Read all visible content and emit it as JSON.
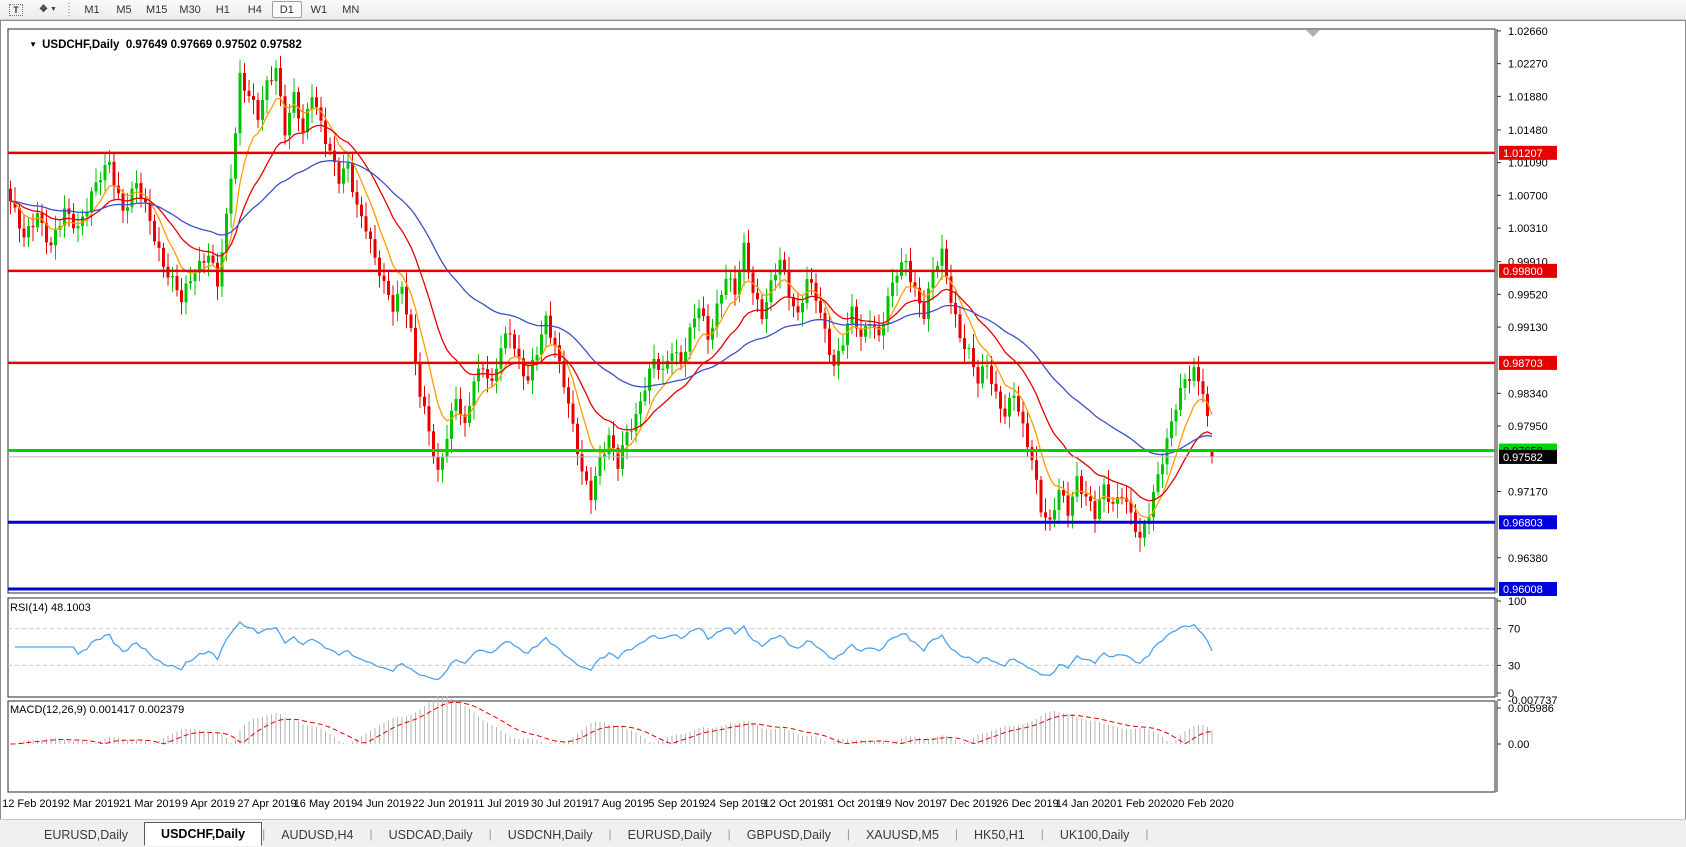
{
  "toolbar": {
    "tools": [
      {
        "name": "text-label-tool",
        "glyph": "T"
      },
      {
        "name": "arrange-windows-tool",
        "glyph": "❖"
      }
    ],
    "timeframes": [
      "M1",
      "M5",
      "M15",
      "M30",
      "H1",
      "H4",
      "D1",
      "W1",
      "MN"
    ],
    "active_timeframe": "D1"
  },
  "chart": {
    "title_symbol": "USDCHF,Daily",
    "quote_open": "0.97649",
    "quote_high": "0.97669",
    "quote_low": "0.97502",
    "quote_close": "0.97582"
  },
  "chart_data": {
    "type": "candlestick",
    "symbol": "USDCHF",
    "timeframe": "Daily",
    "title": "USDCHF,Daily 0.97649 0.97669 0.97502 0.97582",
    "candle_count": 268,
    "x_labels": [
      "12 Feb 2019",
      "2 Mar 2019",
      "21 Mar 2019",
      "9 Apr 2019",
      "27 Apr 2019",
      "16 May 2019",
      "4 Jun 2019",
      "22 Jun 2019",
      "11 Jul 2019",
      "30 Jul 2019",
      "17 Aug 2019",
      "5 Sep 2019",
      "24 Sep 2019",
      "12 Oct 2019",
      "31 Oct 2019",
      "19 Nov 2019",
      "7 Dec 2019",
      "26 Dec 2019",
      "14 Jan 2020",
      "1 Feb 2020",
      "20 Feb 2020"
    ],
    "label_start_index": 5,
    "label_step": 13,
    "price_axis_ticks": [
      "1.02660",
      "1.02270",
      "1.01880",
      "1.01480",
      "1.01090",
      "1.00700",
      "1.00310",
      "0.99910",
      "0.99520",
      "0.99130",
      "0.98340",
      "0.97950",
      "0.97170",
      "0.96380"
    ],
    "price_top": 1.02683,
    "price_bottom": 0.9596,
    "horizontal_lines": [
      {
        "price": 1.01207,
        "label": "1.01207",
        "color": "#e60000",
        "width": 2.5,
        "label_bg": "#e60000",
        "label_fg": "#ffffff"
      },
      {
        "price": 0.998,
        "label": "0.99800",
        "color": "#e60000",
        "width": 2.5,
        "label_bg": "#e60000",
        "label_fg": "#ffffff"
      },
      {
        "price": 0.98703,
        "label": "0.98703",
        "color": "#e60000",
        "width": 2.5,
        "label_bg": "#e60000",
        "label_fg": "#ffffff"
      },
      {
        "price": 0.97658,
        "label": "0.97658",
        "color": "#00d400",
        "width": 3,
        "label_bg": "#00d400",
        "label_fg": "#000000"
      },
      {
        "price": 0.97582,
        "label": "0.97582",
        "color": "#b8b8b8",
        "width": 1,
        "label_bg": "#000000",
        "label_fg": "#ffffff"
      },
      {
        "price": 0.96803,
        "label": "0.96803",
        "color": "#0000dd",
        "width": 3,
        "label_bg": "#0000dd",
        "label_fg": "#ffffff"
      },
      {
        "price": 0.96008,
        "label": "0.96008",
        "color": "#0000dd",
        "width": 3,
        "label_bg": "#0000dd",
        "label_fg": "#ffffff"
      }
    ],
    "close_waypoints": [
      [
        0,
        1.0063
      ],
      [
        3,
        1.0015
      ],
      [
        6,
        1.0052
      ],
      [
        9,
        1.0008
      ],
      [
        12,
        1.0048
      ],
      [
        15,
        1.0035
      ],
      [
        18,
        1.007
      ],
      [
        22,
        1.0108
      ],
      [
        25,
        1.0055
      ],
      [
        28,
        1.008
      ],
      [
        31,
        1.004
      ],
      [
        34,
        0.999
      ],
      [
        38,
        0.9942
      ],
      [
        41,
        0.9985
      ],
      [
        44,
        1.0002
      ],
      [
        46,
        0.996
      ],
      [
        48,
        1.004
      ],
      [
        50,
        1.015
      ],
      [
        51,
        1.0215
      ],
      [
        53,
        1.019
      ],
      [
        55,
        1.016
      ],
      [
        57,
        1.02
      ],
      [
        59,
        1.0226
      ],
      [
        61,
        1.015
      ],
      [
        63,
        1.0185
      ],
      [
        65,
        1.014
      ],
      [
        67,
        1.0195
      ],
      [
        69,
        1.016
      ],
      [
        71,
        1.012
      ],
      [
        73,
        1.0085
      ],
      [
        75,
        1.0105
      ],
      [
        77,
        1.006
      ],
      [
        79,
        1.0035
      ],
      [
        81,
        0.999
      ],
      [
        83,
        0.996
      ],
      [
        85,
        0.994
      ],
      [
        87,
        0.9965
      ],
      [
        89,
        0.9905
      ],
      [
        91,
        0.983
      ],
      [
        93,
        0.979
      ],
      [
        95,
        0.9742
      ],
      [
        97,
        0.9785
      ],
      [
        99,
        0.9825
      ],
      [
        101,
        0.979
      ],
      [
        103,
        0.9855
      ],
      [
        105,
        0.987
      ],
      [
        107,
        0.984
      ],
      [
        109,
        0.9885
      ],
      [
        111,
        0.991
      ],
      [
        113,
        0.9875
      ],
      [
        115,
        0.985
      ],
      [
        117,
        0.988
      ],
      [
        119,
        0.992
      ],
      [
        121,
        0.9895
      ],
      [
        123,
        0.985
      ],
      [
        125,
        0.979
      ],
      [
        127,
        0.9735
      ],
      [
        129,
        0.9715
      ],
      [
        131,
        0.976
      ],
      [
        133,
        0.978
      ],
      [
        135,
        0.9745
      ],
      [
        137,
        0.9785
      ],
      [
        139,
        0.981
      ],
      [
        141,
        0.9845
      ],
      [
        143,
        0.987
      ],
      [
        145,
        0.9855
      ],
      [
        147,
        0.989
      ],
      [
        149,
        0.9875
      ],
      [
        151,
        0.9905
      ],
      [
        153,
        0.9935
      ],
      [
        155,
        0.99
      ],
      [
        157,
        0.994
      ],
      [
        159,
        0.9975
      ],
      [
        161,
        0.995
      ],
      [
        163,
        1.0005
      ],
      [
        165,
        0.996
      ],
      [
        167,
        0.993
      ],
      [
        169,
        0.996
      ],
      [
        171,
        0.999
      ],
      [
        173,
        0.9955
      ],
      [
        175,
        0.993
      ],
      [
        177,
        0.997
      ],
      [
        179,
        0.9945
      ],
      [
        181,
        0.9905
      ],
      [
        183,
        0.987
      ],
      [
        185,
        0.99
      ],
      [
        187,
        0.993
      ],
      [
        189,
        0.9895
      ],
      [
        191,
        0.9925
      ],
      [
        193,
        0.9905
      ],
      [
        195,
        0.9945
      ],
      [
        197,
        0.9975
      ],
      [
        199,
        0.999
      ],
      [
        201,
        0.996
      ],
      [
        203,
        0.993
      ],
      [
        205,
        0.9975
      ],
      [
        207,
        0.9998
      ],
      [
        209,
        0.995
      ],
      [
        211,
        0.9905
      ],
      [
        213,
        0.988
      ],
      [
        215,
        0.9845
      ],
      [
        217,
        0.987
      ],
      [
        219,
        0.9835
      ],
      [
        221,
        0.981
      ],
      [
        223,
        0.983
      ],
      [
        225,
        0.979
      ],
      [
        227,
        0.976
      ],
      [
        229,
        0.97
      ],
      [
        231,
        0.9675
      ],
      [
        233,
        0.9715
      ],
      [
        235,
        0.9695
      ],
      [
        237,
        0.9735
      ],
      [
        239,
        0.971
      ],
      [
        241,
        0.9685
      ],
      [
        243,
        0.972
      ],
      [
        245,
        0.9705
      ],
      [
        247,
        0.9718
      ],
      [
        249,
        0.9685
      ],
      [
        251,
        0.9655
      ],
      [
        253,
        0.9695
      ],
      [
        255,
        0.974
      ],
      [
        257,
        0.9775
      ],
      [
        259,
        0.9815
      ],
      [
        261,
        0.985
      ],
      [
        263,
        0.9865
      ],
      [
        265,
        0.984
      ],
      [
        266,
        0.98
      ],
      [
        267,
        0.97582
      ]
    ],
    "noise": {
      "close_amp": 0.0011,
      "wick_amp": 0.0017
    },
    "last_candle": {
      "open": 0.97649,
      "high": 0.97669,
      "low": 0.97502,
      "close": 0.97582
    },
    "moving_averages": [
      {
        "period": 8,
        "color": "#ff9c00"
      },
      {
        "period": 20,
        "color": "#e60000"
      },
      {
        "period": 50,
        "color": "#3a50c8"
      }
    ],
    "candle_up_color": "#00c400",
    "candle_down_color": "#e80000",
    "rsi": {
      "label": "RSI(14) 48.1003",
      "period": 14,
      "current": 48.1003,
      "levels": [
        70,
        30
      ],
      "ticks": [
        {
          "v": 100,
          "t": "100"
        },
        {
          "v": 70,
          "t": "70"
        },
        {
          "v": 30,
          "t": "30"
        },
        {
          "v": 0,
          "t": "0"
        }
      ],
      "color": "#4aa3f0"
    },
    "macd": {
      "label": "MACD(12,26,9) 0.001417 0.002379",
      "fast": 12,
      "slow": 26,
      "signal": 9,
      "current_macd": 0.001417,
      "current_signal": 0.002379,
      "ticks": [
        {
          "v": 0.005986,
          "t": "0.005986"
        },
        {
          "v": 0,
          "t": "0.00"
        },
        {
          "v": -0.007737,
          "t": "-0.007737"
        }
      ],
      "bar_color": "#b4b4b4",
      "signal_color": "#e60000"
    }
  },
  "bottom_tabs": {
    "tabs": [
      "EURUSD,Daily",
      "USDCHF,Daily",
      "AUDUSD,H4",
      "USDCAD,Daily",
      "USDCNH,Daily",
      "EURUSD,Daily",
      "GBPUSD,Daily",
      "XAUUSD,M5",
      "HK50,H1",
      "UK100,Daily"
    ],
    "active_index": 1
  }
}
